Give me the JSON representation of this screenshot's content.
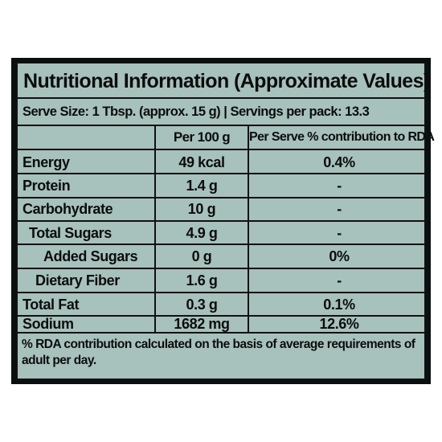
{
  "label": {
    "title": "Nutritional Information (Approximate Values)",
    "serve_line": "Serve Size: 1 Tbsp. (approx. 15 g) | Servings per pack: 13.3",
    "columns": {
      "per100": "Per 100 g",
      "per_serve": "Per Serve % contribution to RDA"
    },
    "rows": [
      {
        "name": "Energy",
        "per100": "49 kcal",
        "rda": "0.4%"
      },
      {
        "name": "Protein",
        "per100": "1.4 g",
        "rda": "-"
      },
      {
        "name": "Carbohydrate",
        "per100": "10 g",
        "rda": "-"
      },
      {
        "name": "Total Sugars",
        "per100": "4.9 g",
        "rda": "-"
      },
      {
        "name": "Added Sugars",
        "per100": "0 g",
        "rda": "0%"
      },
      {
        "name": "Dietary Fiber",
        "per100": "1.6 g",
        "rda": "-"
      },
      {
        "name": "Total Fat",
        "per100": "0.3 g",
        "rda": "0.1%"
      },
      {
        "name": "Sodium",
        "per100": "1682 mg",
        "rda": "12.6%"
      }
    ],
    "footnote": "% RDA contribution calculated on the basis of average requirements of adult per day."
  }
}
